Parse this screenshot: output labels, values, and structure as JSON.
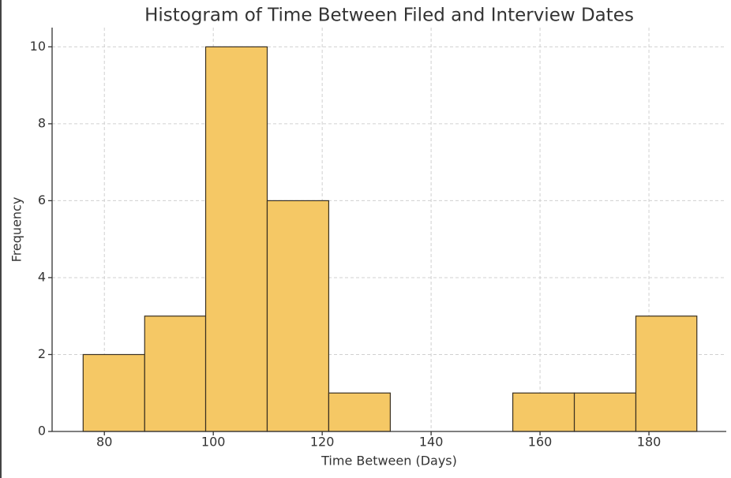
{
  "chart_data": {
    "type": "histogram",
    "title": "Histogram of Time Between Filed and Interview Dates",
    "x_label": "Time Between (Days)",
    "y_label": "Frequency",
    "bins": [
      76.1,
      87.4,
      98.6,
      109.9,
      121.2,
      132.5,
      143.7,
      155.0,
      166.3,
      177.6,
      188.8
    ],
    "counts": [
      2,
      3,
      10,
      6,
      1,
      0,
      0,
      1,
      1,
      3
    ],
    "color": "#f5c865",
    "edgecolor": "#3a3020",
    "xlim": [
      70.4,
      194.2
    ],
    "ylim": [
      0,
      10.5
    ],
    "xticks": [
      80,
      100,
      120,
      140,
      160,
      180
    ],
    "yticks": [
      0,
      2,
      4,
      6,
      8,
      10
    ],
    "grid": true
  }
}
